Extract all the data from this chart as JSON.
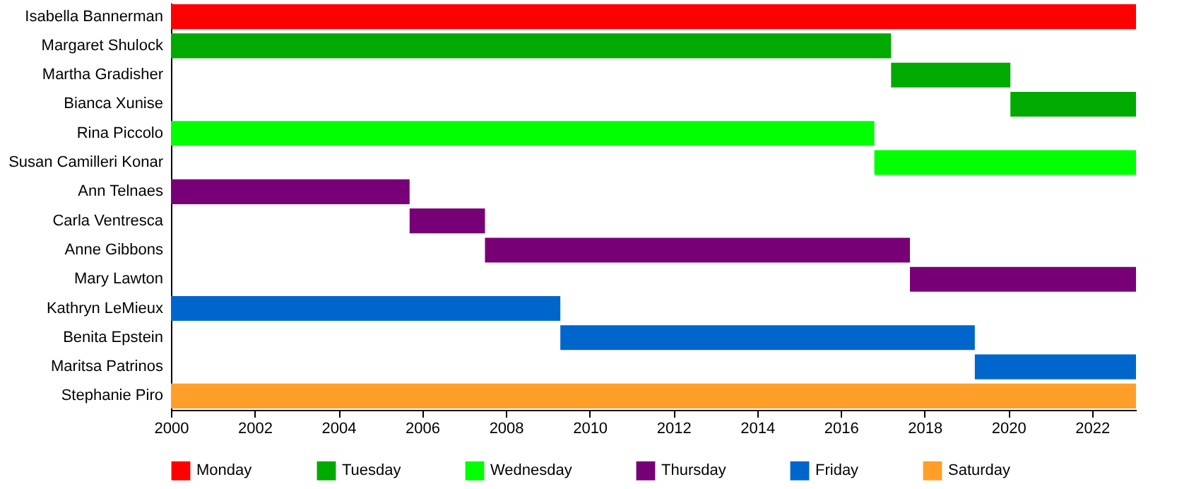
{
  "chart_data": {
    "type": "bar",
    "orientation": "horizontal",
    "categories": [
      "Isabella Bannerman",
      "Margaret Shulock",
      "Martha Gradisher",
      "Bianca Xunise",
      "Rina Piccolo",
      "Susan Camilleri Konar",
      "Ann Telnaes",
      "Carla Ventresca",
      "Anne Gibbons",
      "Mary Lawton",
      "Kathryn LeMieux",
      "Benita Epstein",
      "Maritsa Patrinos",
      "Stephanie Piro"
    ],
    "series": [
      {
        "name": "Monday",
        "color": "#ff0000",
        "base": [
          2000,
          null,
          null,
          null,
          null,
          null,
          null,
          null,
          null,
          null,
          null,
          null,
          null,
          null
        ],
        "values": [
          23.05,
          null,
          null,
          null,
          null,
          null,
          null,
          null,
          null,
          null,
          null,
          null,
          null,
          null
        ]
      },
      {
        "name": "Tuesday",
        "color": "#00aa00",
        "base": [
          null,
          2000,
          2017.2,
          2020.05,
          null,
          null,
          null,
          null,
          null,
          null,
          null,
          null,
          null,
          null
        ],
        "values": [
          null,
          17.2,
          2.85,
          3.0,
          null,
          null,
          null,
          null,
          null,
          null,
          null,
          null,
          null,
          null
        ]
      },
      {
        "name": "Wednesday",
        "color": "#00ff00",
        "base": [
          null,
          null,
          null,
          null,
          2000,
          2016.8,
          null,
          null,
          null,
          null,
          null,
          null,
          null,
          null
        ],
        "values": [
          null,
          null,
          null,
          null,
          16.8,
          6.25,
          null,
          null,
          null,
          null,
          null,
          null,
          null,
          null
        ]
      },
      {
        "name": "Thursday",
        "color": "#770077",
        "base": [
          null,
          null,
          null,
          null,
          null,
          null,
          2000,
          2005.7,
          2007.5,
          2017.65,
          null,
          null,
          null,
          null
        ],
        "values": [
          null,
          null,
          null,
          null,
          null,
          null,
          5.7,
          1.8,
          10.15,
          5.4,
          null,
          null,
          null,
          null
        ]
      },
      {
        "name": "Friday",
        "color": "#0066cc",
        "base": [
          null,
          null,
          null,
          null,
          null,
          null,
          null,
          null,
          null,
          null,
          2000,
          2009.3,
          2019.2,
          null
        ],
        "values": [
          null,
          null,
          null,
          null,
          null,
          null,
          null,
          null,
          null,
          null,
          9.3,
          9.9,
          3.85,
          null
        ]
      },
      {
        "name": "Saturday",
        "color": "#ff9f2a",
        "base": [
          null,
          null,
          null,
          null,
          null,
          null,
          null,
          null,
          null,
          null,
          null,
          null,
          null,
          2000
        ],
        "values": [
          null,
          null,
          null,
          null,
          null,
          null,
          null,
          null,
          null,
          null,
          null,
          null,
          null,
          23.05
        ]
      }
    ],
    "xlim": [
      2000,
      2023.05
    ],
    "xticks": [
      2000,
      2002,
      2004,
      2006,
      2008,
      2010,
      2012,
      2014,
      2016,
      2018,
      2020,
      2022
    ],
    "grid": false,
    "legend": "bottom"
  }
}
